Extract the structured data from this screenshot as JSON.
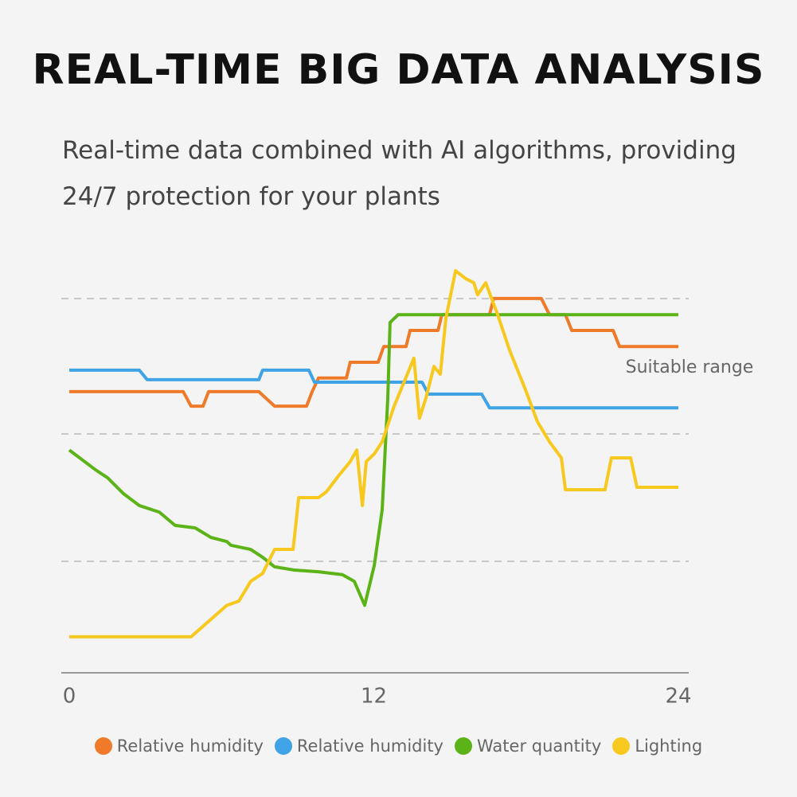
{
  "chart_data": {
    "type": "line",
    "title": "REAL-TIME BIG DATA ANALYSIS",
    "subtitle": "Real-time data combined with AI algorithms, providing 24/7 protection for your plants",
    "annotation": "Suitable range",
    "xlim": [
      0,
      24
    ],
    "xticks": [
      0,
      12,
      24
    ],
    "ylim": [
      0,
      100
    ],
    "legend": "bottom",
    "series": [
      {
        "name": "Relative humidity",
        "color": "#ee7a2a",
        "x": [
          0,
          4.49,
          4.8,
          5.27,
          5.49,
          7.47,
          8.09,
          9.35,
          9.57,
          9.82,
          10.92,
          11.07,
          12.17,
          12.39,
          13.27,
          13.43,
          14.53,
          14.68,
          16.56,
          16.72,
          18.6,
          18.92,
          19.55,
          19.8,
          21.43,
          21.68,
          24
        ],
        "values": [
          67.9,
          67.9,
          64.4,
          64.4,
          67.9,
          67.9,
          64.4,
          64.4,
          67.9,
          71.2,
          71.2,
          75,
          75,
          78.8,
          78.8,
          82.7,
          82.7,
          86.5,
          86.5,
          90.4,
          90.4,
          86.5,
          86.5,
          82.7,
          82.7,
          78.8,
          78.8
        ]
      },
      {
        "name": "Relative humidity",
        "color": "#3fa3e6",
        "x": [
          0,
          2.76,
          3.07,
          7.47,
          7.62,
          9.44,
          9.66,
          13.9,
          14.15,
          16.25,
          16.56,
          24
        ],
        "values": [
          73.1,
          73.1,
          70.8,
          70.8,
          73.1,
          73.1,
          70.2,
          70.2,
          67.3,
          67.3,
          64,
          64
        ]
      },
      {
        "name": "Water quantity",
        "color": "#5cb318",
        "x": [
          0,
          1.04,
          1.51,
          2.13,
          2.76,
          3.55,
          4.17,
          4.96,
          5.58,
          6.21,
          6.37,
          7.15,
          7.62,
          8.09,
          8.88,
          9.82,
          10.76,
          11.23,
          11.64,
          12.02,
          12.33,
          12.55,
          12.64,
          12.96,
          24
        ],
        "values": [
          53.8,
          49,
          47.1,
          43.3,
          40.4,
          38.8,
          35.6,
          35,
          32.7,
          31.7,
          30.8,
          29.8,
          27.9,
          25.6,
          24.8,
          24.4,
          23.7,
          22.1,
          16.3,
          26,
          39.4,
          66.3,
          84.6,
          86.5,
          86.5
        ]
      },
      {
        "name": "Lighting",
        "color": "#f7c81e",
        "x": [
          0,
          4.8,
          6.21,
          6.68,
          7.15,
          7.62,
          8.09,
          8.82,
          9.04,
          9.82,
          10.13,
          10.6,
          11.07,
          11.33,
          11.55,
          11.7,
          12.02,
          12.33,
          12.8,
          13.58,
          13.8,
          14.05,
          14.37,
          14.62,
          14.84,
          15.22,
          15.62,
          15.94,
          16.09,
          16.41,
          16.88,
          17.35,
          17.98,
          18.45,
          18.92,
          19.39,
          19.55,
          21.11,
          21.36,
          22.12,
          22.37,
          24
        ],
        "values": [
          8.7,
          8.7,
          16.3,
          17.3,
          22.1,
          24,
          29.8,
          29.8,
          42.3,
          42.3,
          43.7,
          47.5,
          51,
          53.8,
          40.4,
          51,
          52.9,
          55.8,
          64.4,
          76,
          61.5,
          66.3,
          74,
          72.1,
          85.6,
          97.1,
          95.2,
          94.2,
          91.3,
          94.2,
          86.5,
          77.9,
          68.3,
          60.6,
          55.8,
          51.9,
          44.2,
          44.2,
          51.9,
          51.9,
          44.8,
          44.8
        ]
      }
    ]
  }
}
